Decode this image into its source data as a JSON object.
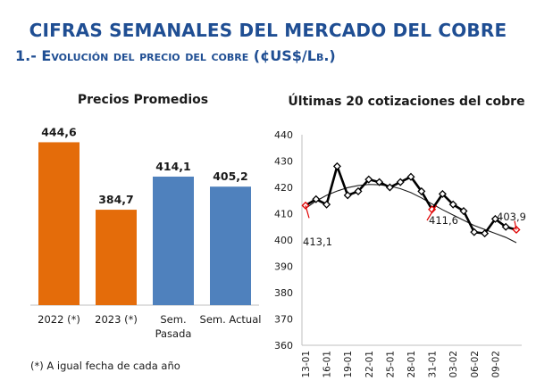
{
  "header": {
    "title": "CIFRAS SEMANALES DEL MERCADO DEL COBRE",
    "subtitle": "1.- Evolución del precio del cobre (¢US$/Lb.)"
  },
  "footnote": "(*) A igual fecha de cada año",
  "colors": {
    "title": "#1f4e93",
    "orange": "#e46c0a",
    "blue": "#4f81bd",
    "marker": "#e00000"
  },
  "chart_data": [
    {
      "type": "bar",
      "title": "Precios Promedios",
      "categories": [
        "2022 (*)",
        "2023 (*)",
        "Sem.\nPasada",
        "Sem. Actual"
      ],
      "values": [
        444.6,
        384.7,
        414.1,
        405.2
      ],
      "value_labels": [
        "444,6",
        "384,7",
        "414,1",
        "405,2"
      ],
      "bar_colors": [
        "#e46c0a",
        "#e46c0a",
        "#4f81bd",
        "#4f81bd"
      ],
      "ylim": [
        300,
        460
      ]
    },
    {
      "type": "line",
      "title": "Últimas 20 cotizaciones del cobre",
      "x_ticks": [
        "13-01",
        "16-01",
        "19-01",
        "22-01",
        "25-01",
        "28-01",
        "31-01",
        "03-02",
        "06-02",
        "09-02"
      ],
      "series": [
        {
          "values": [
            413.1,
            415.5,
            413.5,
            428.0,
            417.0,
            418.5,
            423.0,
            422.0,
            420.0,
            422.0,
            424.0,
            418.5,
            411.6,
            417.5,
            413.5,
            411.0,
            403.0,
            402.5,
            408.0,
            405.0,
            403.9
          ]
        },
        {
          "type": "trend",
          "values": [
            412.0,
            414.8,
            417.0,
            418.6,
            419.9,
            420.7,
            421.1,
            421.0,
            420.5,
            419.5,
            418.0,
            416.0,
            413.7,
            411.5,
            409.5,
            407.5,
            405.5,
            404.0,
            402.5,
            401.0,
            399.0
          ]
        }
      ],
      "annotations": [
        {
          "label": "413,1",
          "index": 0
        },
        {
          "label": "411,6",
          "index": 12
        },
        {
          "label": "403,9",
          "index": 20
        }
      ],
      "ylim": [
        360,
        440
      ],
      "yticks": [
        360,
        370,
        380,
        390,
        400,
        410,
        420,
        430,
        440
      ]
    }
  ]
}
